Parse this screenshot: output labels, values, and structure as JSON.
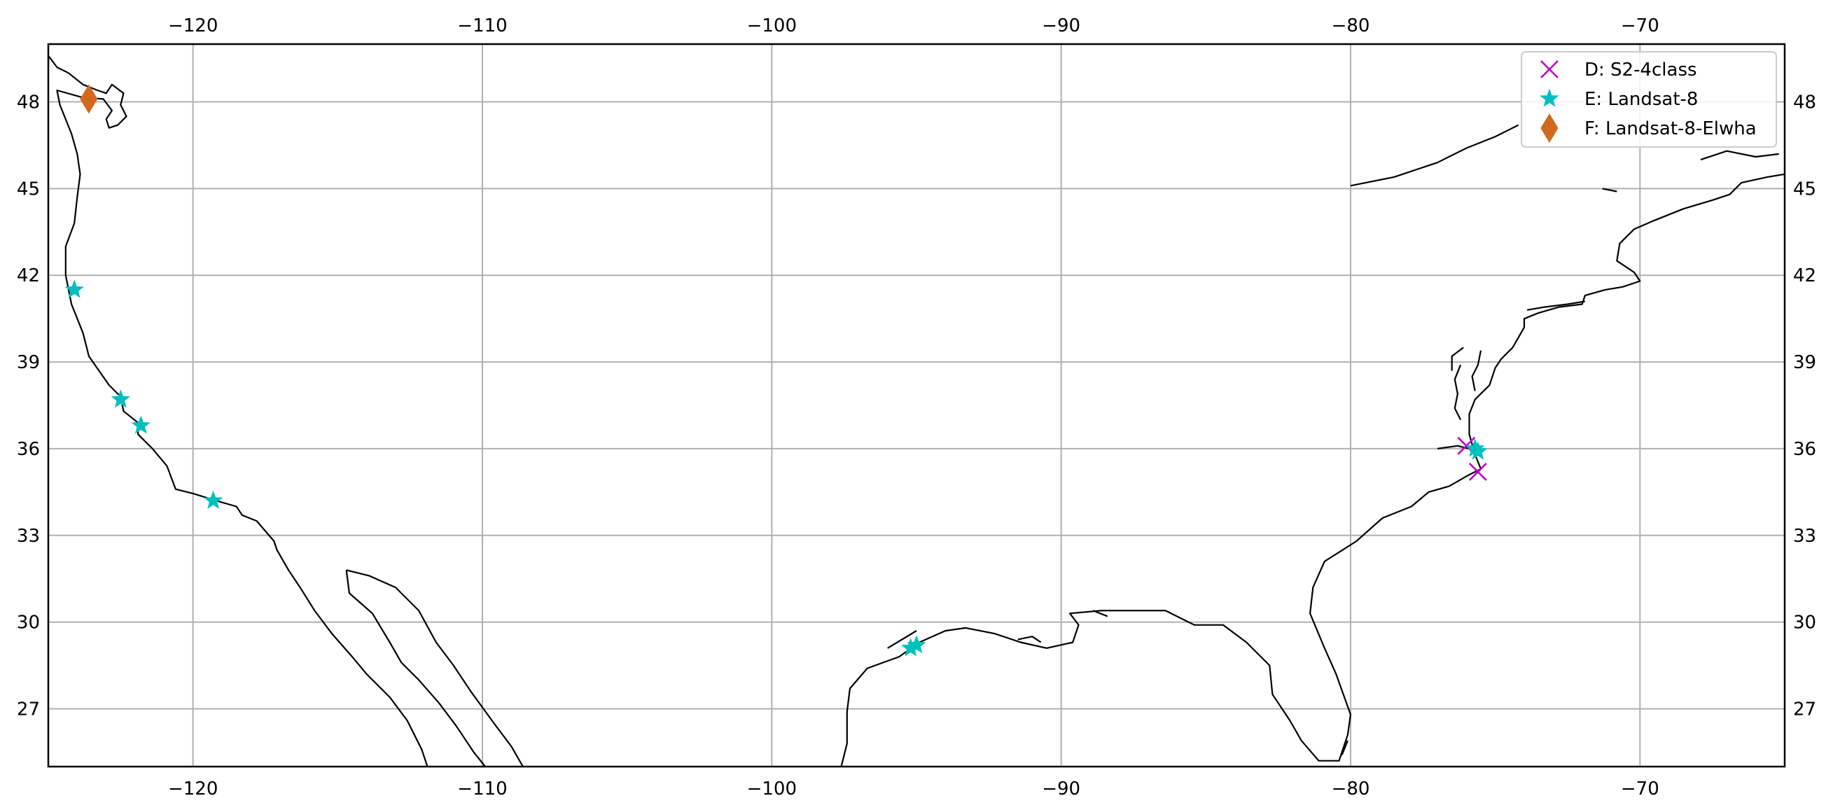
{
  "chart_data": {
    "type": "scatter",
    "projection": "PlateCarree",
    "xlim": [
      -125,
      -65
    ],
    "ylim": [
      25,
      50
    ],
    "grid": true,
    "x_ticks": [
      -120,
      -110,
      -100,
      -90,
      -80,
      -70
    ],
    "y_ticks": [
      27,
      30,
      33,
      36,
      39,
      42,
      45,
      48
    ],
    "x_tick_labels": [
      "−120",
      "−110",
      "−100",
      "−90",
      "−80",
      "−70"
    ],
    "y_tick_labels": [
      "27",
      "30",
      "33",
      "36",
      "39",
      "42",
      "45",
      "48"
    ],
    "tick_positions": "top-bottom-left-right",
    "legend_location": "top-right",
    "series": [
      {
        "name": "D: S2-4class",
        "marker": "x",
        "color": "#bf00bf",
        "points": [
          [
            -76.0,
            36.1
          ],
          [
            -75.6,
            35.2
          ]
        ]
      },
      {
        "name": "E: Landsat-8",
        "marker": "star",
        "color": "#00bfbf",
        "points": [
          [
            -124.1,
            41.5
          ],
          [
            -122.5,
            37.7
          ],
          [
            -121.8,
            36.8
          ],
          [
            -119.3,
            34.2
          ],
          [
            -95.2,
            29.1
          ],
          [
            -95.0,
            29.2
          ],
          [
            -75.6,
            35.9
          ],
          [
            -75.7,
            36.0
          ]
        ]
      },
      {
        "name": "F: Landsat-8-Elwha",
        "marker": "diamond",
        "color": "#d2691e",
        "points": [
          [
            -123.6,
            48.1
          ]
        ]
      }
    ]
  }
}
